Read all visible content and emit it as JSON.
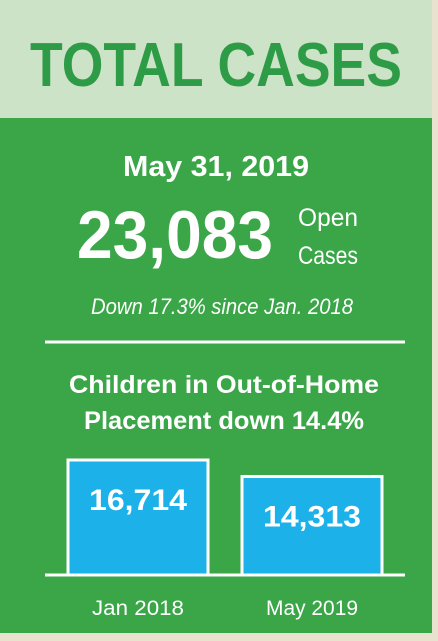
{
  "header": {
    "title": "TOTAL CASES",
    "date": "May 31, 2019",
    "open_cases": "23,083",
    "open_cases_unit": [
      "Open",
      "Cases"
    ],
    "change": "Down 17.3% since Jan. 2018"
  },
  "chart_data": {
    "type": "bar",
    "title": [
      "Children in Out-of-Home",
      "Placement down 14.4%"
    ],
    "categories": [
      "Jan 2018",
      "May 2019"
    ],
    "values": [
      16714,
      14313
    ],
    "value_labels": [
      "16,714",
      "14,313"
    ],
    "color": "#1cb1e8"
  }
}
